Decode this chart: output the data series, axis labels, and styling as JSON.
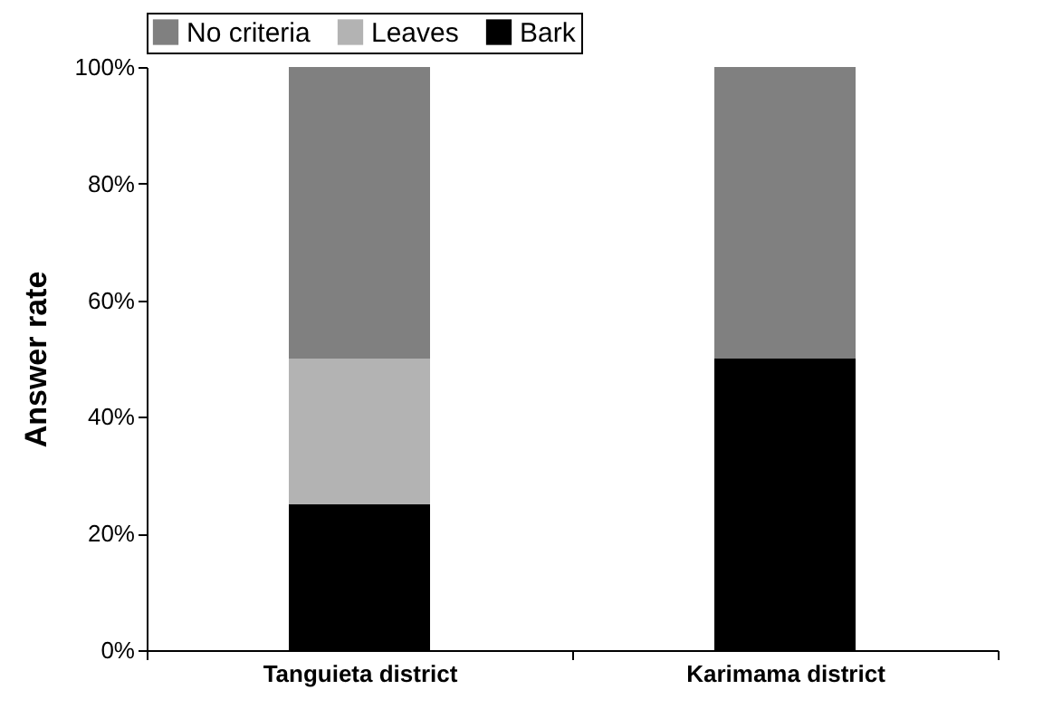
{
  "chart_data": {
    "type": "bar",
    "stacked": true,
    "ylabel": "Answer rate",
    "categories": [
      "Tanguieta district",
      "Karimama district"
    ],
    "series": [
      {
        "name": "Bark",
        "color": "#000000",
        "values": [
          25,
          50
        ]
      },
      {
        "name": "Leaves",
        "color": "#b3b3b3",
        "values": [
          25,
          0
        ]
      },
      {
        "name": "No criteria",
        "color": "#808080",
        "values": [
          50,
          50
        ]
      }
    ],
    "ylim": [
      0,
      100
    ],
    "yticks": [
      {
        "value": 0,
        "label": "0%"
      },
      {
        "value": 20,
        "label": "20%"
      },
      {
        "value": 40,
        "label": "40%"
      },
      {
        "value": 60,
        "label": "60%"
      },
      {
        "value": 80,
        "label": "80%"
      },
      {
        "value": 100,
        "label": "100%"
      }
    ],
    "grid": false,
    "legend": "top"
  }
}
